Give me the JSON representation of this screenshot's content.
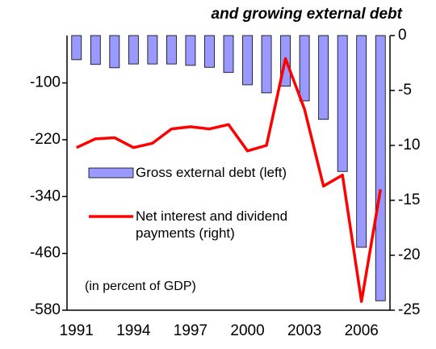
{
  "chart_data": {
    "type": "bar-line",
    "title": "and growing external debt",
    "categories": [
      "1991",
      null,
      null,
      "1994",
      null,
      null,
      "1997",
      null,
      null,
      "2000",
      null,
      null,
      "2003",
      null,
      null,
      "2006",
      null
    ],
    "series": [
      {
        "name": "Gross external debt (left)",
        "type": "bar",
        "axis": "y",
        "color": "#9999ff",
        "values": [
          -51,
          -61,
          -68,
          -60,
          -60,
          -60,
          -63,
          -67,
          -78,
          -104,
          -121,
          -107,
          -138,
          -177,
          -287,
          -447,
          -560
        ]
      },
      {
        "name": "Net interest and dividend payments (right)",
        "type": "line",
        "axis": "y2",
        "color": "#ff0000",
        "values": [
          -10.2,
          -9.4,
          -9.3,
          -10.2,
          -9.8,
          -8.5,
          -8.3,
          -8.5,
          -8.1,
          -10.5,
          -10.0,
          -2.1,
          -6.7,
          -13.7,
          -12.7,
          -24.2,
          -14.0
        ]
      }
    ],
    "annotation": "(in percent of GDP)",
    "ylim": [
      -580,
      0
    ],
    "yticks": [
      -580,
      -460,
      -340,
      -220,
      -100
    ],
    "y2lim": [
      -25,
      0
    ],
    "y2ticks": [
      -25,
      -20,
      -15,
      -10,
      -5,
      0
    ],
    "grid": false
  }
}
